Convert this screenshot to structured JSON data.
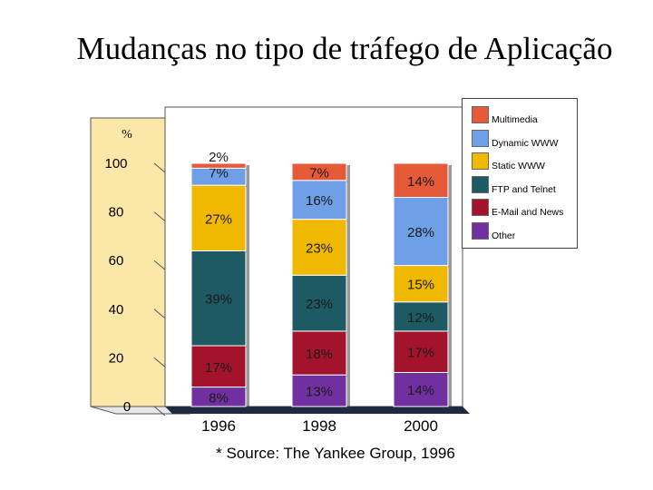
{
  "title": "Mudanças no tipo de tráfego de Aplicação",
  "source": "* Source: The Yankee Group, 1996",
  "chart_data": {
    "type": "bar",
    "stacked": true,
    "ylabel": "%",
    "yticks": [
      "0",
      "20",
      "40",
      "60",
      "80",
      "100"
    ],
    "ylim": [
      0,
      100
    ],
    "categories": [
      "1996",
      "1998",
      "2000"
    ],
    "series": [
      {
        "name": "Other",
        "color": "#7030a0",
        "values": [
          8,
          13,
          14
        ],
        "labels": [
          "8%",
          "13%",
          "14%"
        ]
      },
      {
        "name": "E-Mail and News",
        "color": "#a3142c",
        "values": [
          17,
          18,
          17
        ],
        "labels": [
          "17%",
          "18%",
          "17%"
        ]
      },
      {
        "name": "FTP and Telnet",
        "color": "#1d5a63",
        "values": [
          39,
          23,
          12
        ],
        "labels": [
          "39%",
          "23%",
          "12%"
        ]
      },
      {
        "name": "Static WWW",
        "color": "#f0b800",
        "values": [
          27,
          23,
          15
        ],
        "labels": [
          "27%",
          "23%",
          "15%"
        ]
      },
      {
        "name": "Dynamic WWW",
        "color": "#6f9fe6",
        "values": [
          7,
          16,
          28
        ],
        "labels": [
          "7%",
          "16%",
          "28%"
        ]
      },
      {
        "name": "Multimedia",
        "color": "#e65a3a",
        "values": [
          2,
          7,
          14
        ],
        "labels": [
          "2%",
          "7%",
          "14%"
        ]
      }
    ],
    "legend": {
      "position": "top-right",
      "order": [
        "Multimedia",
        "Dynamic WWW",
        "Static WWW",
        "FTP and Telnet",
        "E-Mail and News",
        "Other"
      ]
    }
  }
}
